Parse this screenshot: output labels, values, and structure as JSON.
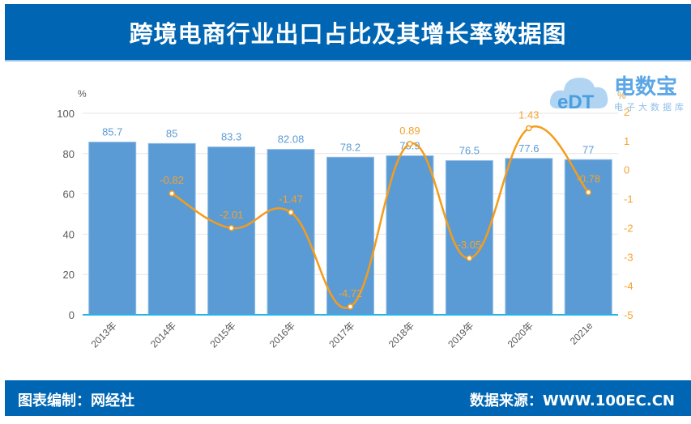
{
  "header": {
    "title": "跨境电商行业出口占比及其增长率数据图"
  },
  "footer": {
    "left": "图表编制：网经社",
    "right": "数据来源：WWW.100EC.CN"
  },
  "logo": {
    "mark": "eDT",
    "name": "电数宝",
    "subtitle": "电子大数据库"
  },
  "colors": {
    "header_bg": "#0066b3",
    "bar": "#5b9bd5",
    "bar_label": "#5b9bd5",
    "line": "#f59c1a",
    "line_label": "#f5a22e",
    "axis_line": "#22b5e8",
    "grid": "#e6e6e6"
  },
  "chart_data": {
    "type": "bar+line",
    "title": "跨境电商行业出口占比及其增长率数据图",
    "categories": [
      "2013年",
      "2014年",
      "2015年",
      "2016年",
      "2017年",
      "2018年",
      "2019年",
      "2020年",
      "2021e"
    ],
    "series": [
      {
        "name": "出口占比",
        "type": "bar",
        "axis": "left",
        "values": [
          85.7,
          85,
          83.3,
          82.08,
          78.2,
          78.9,
          76.5,
          77.6,
          77
        ],
        "labels": [
          "85.7",
          "85",
          "83.3",
          "82.08",
          "78.2",
          "78.9",
          "76.5",
          "77.6",
          "77"
        ]
      },
      {
        "name": "增长率",
        "type": "line",
        "axis": "right",
        "values": [
          null,
          -0.82,
          -2.01,
          -1.47,
          -4.72,
          0.89,
          -3.05,
          1.43,
          -0.78
        ],
        "labels": [
          "",
          "-0.82",
          "-2.01",
          "-1.47",
          "-4.72",
          "0.89",
          "-3.05",
          "1.43",
          "-0.78"
        ]
      }
    ],
    "y_left": {
      "unit": "%",
      "ylim": [
        0,
        100
      ],
      "ticks": [
        "0",
        "20",
        "40",
        "60",
        "80",
        "100"
      ]
    },
    "y_right": {
      "unit": "%",
      "ylim": [
        -5,
        2
      ],
      "ticks": [
        "-5",
        "-4",
        "-3",
        "-2",
        "-1",
        "0",
        "1",
        "2"
      ]
    },
    "grid": true,
    "legend": "none"
  }
}
